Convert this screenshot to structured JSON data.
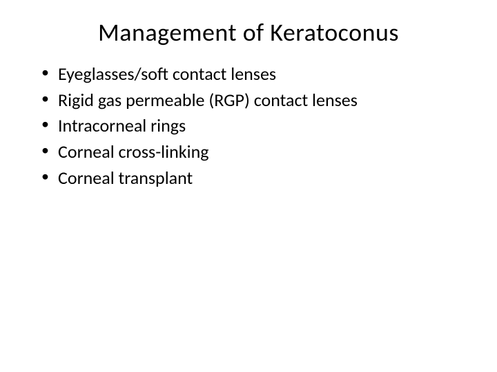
{
  "slide": {
    "title": "Management of Keratoconus",
    "bullets": [
      "Eyeglasses/soft contact lenses",
      "Rigid gas permeable (RGP) contact lenses",
      "Intracorneal rings",
      "Corneal cross-linking",
      "Corneal transplant"
    ],
    "background_color": "#ffffff",
    "text_color": "#000000",
    "title_fontsize": 36,
    "body_fontsize": 26
  }
}
